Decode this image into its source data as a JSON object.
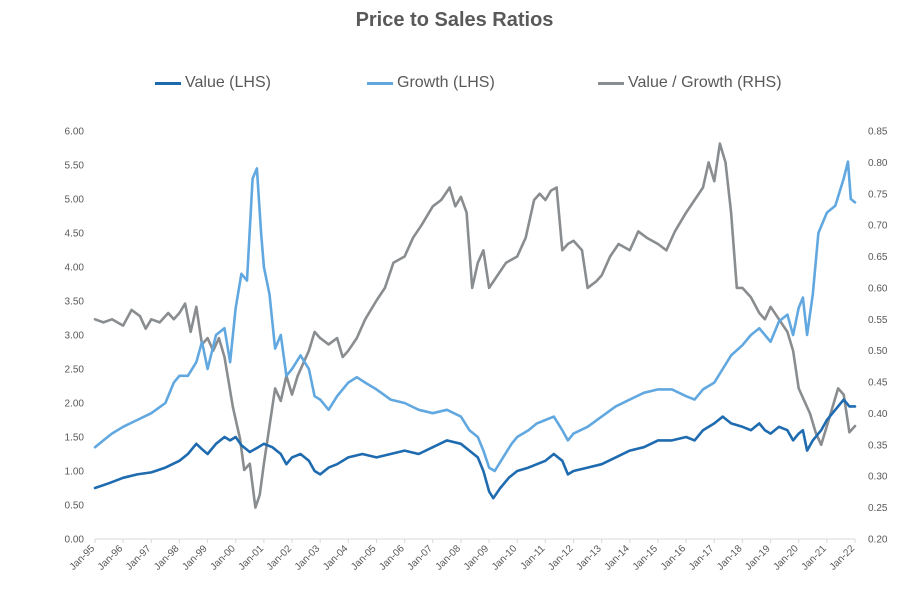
{
  "chart_data": {
    "type": "line",
    "title": "Price to Sales Ratios",
    "legend_position": "top",
    "grid": false,
    "x_ticks": [
      "Jan-95",
      "Jan-96",
      "Jan-97",
      "Jan-98",
      "Jan-99",
      "Jan-00",
      "Jan-01",
      "Jan-02",
      "Jan-03",
      "Jan-04",
      "Jan-05",
      "Jan-06",
      "Jan-07",
      "Jan-08",
      "Jan-09",
      "Jan-10",
      "Jan-11",
      "Jan-12",
      "Jan-13",
      "Jan-14",
      "Jan-15",
      "Jan-16",
      "Jan-17",
      "Jan-18",
      "Jan-19",
      "Jan-20",
      "Jan-21",
      "Jan-22"
    ],
    "y_left": {
      "range": [
        0,
        6
      ],
      "ticks": [
        "0.00",
        "0.50",
        "1.00",
        "1.50",
        "2.00",
        "2.50",
        "3.00",
        "3.50",
        "4.00",
        "4.50",
        "5.00",
        "5.50",
        "6.00"
      ]
    },
    "y_right": {
      "range": [
        0.2,
        0.85
      ],
      "ticks": [
        "0.20",
        "0.25",
        "0.30",
        "0.35",
        "0.40",
        "0.45",
        "0.50",
        "0.55",
        "0.60",
        "0.65",
        "0.70",
        "0.75",
        "0.80",
        "0.85"
      ]
    },
    "series": [
      {
        "name": "Value (LHS)",
        "axis": "left",
        "color": "#1f6bb0",
        "points": [
          [
            1995.0,
            0.75
          ],
          [
            1995.5,
            0.82
          ],
          [
            1996.0,
            0.9
          ],
          [
            1996.5,
            0.95
          ],
          [
            1997.0,
            0.98
          ],
          [
            1997.5,
            1.05
          ],
          [
            1998.0,
            1.15
          ],
          [
            1998.3,
            1.25
          ],
          [
            1998.6,
            1.4
          ],
          [
            1998.8,
            1.32
          ],
          [
            1999.0,
            1.25
          ],
          [
            1999.3,
            1.4
          ],
          [
            1999.6,
            1.5
          ],
          [
            1999.8,
            1.45
          ],
          [
            2000.0,
            1.5
          ],
          [
            2000.2,
            1.38
          ],
          [
            2000.5,
            1.28
          ],
          [
            2000.8,
            1.35
          ],
          [
            2001.0,
            1.4
          ],
          [
            2001.3,
            1.35
          ],
          [
            2001.6,
            1.25
          ],
          [
            2001.8,
            1.1
          ],
          [
            2002.0,
            1.2
          ],
          [
            2002.3,
            1.25
          ],
          [
            2002.6,
            1.15
          ],
          [
            2002.8,
            1.0
          ],
          [
            2003.0,
            0.95
          ],
          [
            2003.3,
            1.05
          ],
          [
            2003.6,
            1.1
          ],
          [
            2004.0,
            1.2
          ],
          [
            2004.5,
            1.25
          ],
          [
            2005.0,
            1.2
          ],
          [
            2005.5,
            1.25
          ],
          [
            2006.0,
            1.3
          ],
          [
            2006.5,
            1.25
          ],
          [
            2007.0,
            1.35
          ],
          [
            2007.5,
            1.45
          ],
          [
            2008.0,
            1.4
          ],
          [
            2008.3,
            1.3
          ],
          [
            2008.6,
            1.2
          ],
          [
            2008.8,
            1.0
          ],
          [
            2009.0,
            0.7
          ],
          [
            2009.15,
            0.6
          ],
          [
            2009.4,
            0.75
          ],
          [
            2009.7,
            0.9
          ],
          [
            2010.0,
            1.0
          ],
          [
            2010.4,
            1.05
          ],
          [
            2010.7,
            1.1
          ],
          [
            2011.0,
            1.15
          ],
          [
            2011.3,
            1.25
          ],
          [
            2011.6,
            1.15
          ],
          [
            2011.8,
            0.95
          ],
          [
            2012.0,
            1.0
          ],
          [
            2012.5,
            1.05
          ],
          [
            2013.0,
            1.1
          ],
          [
            2013.5,
            1.2
          ],
          [
            2014.0,
            1.3
          ],
          [
            2014.5,
            1.35
          ],
          [
            2015.0,
            1.45
          ],
          [
            2015.5,
            1.45
          ],
          [
            2016.0,
            1.5
          ],
          [
            2016.3,
            1.45
          ],
          [
            2016.6,
            1.6
          ],
          [
            2017.0,
            1.7
          ],
          [
            2017.3,
            1.8
          ],
          [
            2017.6,
            1.7
          ],
          [
            2018.0,
            1.65
          ],
          [
            2018.3,
            1.6
          ],
          [
            2018.6,
            1.7
          ],
          [
            2018.8,
            1.6
          ],
          [
            2019.0,
            1.55
          ],
          [
            2019.3,
            1.65
          ],
          [
            2019.6,
            1.6
          ],
          [
            2019.8,
            1.45
          ],
          [
            2020.0,
            1.55
          ],
          [
            2020.15,
            1.6
          ],
          [
            2020.3,
            1.3
          ],
          [
            2020.5,
            1.45
          ],
          [
            2020.8,
            1.6
          ],
          [
            2021.0,
            1.75
          ],
          [
            2021.3,
            1.9
          ],
          [
            2021.6,
            2.05
          ],
          [
            2021.8,
            1.95
          ],
          [
            2022.0,
            1.95
          ]
        ]
      },
      {
        "name": "Growth (LHS)",
        "axis": "left",
        "color": "#62a8e0",
        "points": [
          [
            1995.0,
            1.35
          ],
          [
            1995.3,
            1.45
          ],
          [
            1995.6,
            1.55
          ],
          [
            1996.0,
            1.65
          ],
          [
            1996.5,
            1.75
          ],
          [
            1997.0,
            1.85
          ],
          [
            1997.5,
            2.0
          ],
          [
            1997.8,
            2.3
          ],
          [
            1998.0,
            2.4
          ],
          [
            1998.3,
            2.4
          ],
          [
            1998.6,
            2.6
          ],
          [
            1998.8,
            2.9
          ],
          [
            1999.0,
            2.5
          ],
          [
            1999.3,
            3.0
          ],
          [
            1999.6,
            3.1
          ],
          [
            1999.8,
            2.6
          ],
          [
            2000.0,
            3.4
          ],
          [
            2000.2,
            3.9
          ],
          [
            2000.4,
            3.8
          ],
          [
            2000.6,
            5.3
          ],
          [
            2000.75,
            5.45
          ],
          [
            2000.9,
            4.5
          ],
          [
            2001.0,
            4.0
          ],
          [
            2001.2,
            3.6
          ],
          [
            2001.4,
            2.8
          ],
          [
            2001.6,
            3.0
          ],
          [
            2001.8,
            2.4
          ],
          [
            2002.0,
            2.5
          ],
          [
            2002.3,
            2.7
          ],
          [
            2002.6,
            2.5
          ],
          [
            2002.8,
            2.1
          ],
          [
            2003.0,
            2.05
          ],
          [
            2003.3,
            1.9
          ],
          [
            2003.6,
            2.1
          ],
          [
            2004.0,
            2.3
          ],
          [
            2004.3,
            2.38
          ],
          [
            2004.6,
            2.3
          ],
          [
            2005.0,
            2.2
          ],
          [
            2005.5,
            2.05
          ],
          [
            2006.0,
            2.0
          ],
          [
            2006.5,
            1.9
          ],
          [
            2007.0,
            1.85
          ],
          [
            2007.5,
            1.9
          ],
          [
            2008.0,
            1.8
          ],
          [
            2008.3,
            1.6
          ],
          [
            2008.6,
            1.5
          ],
          [
            2008.8,
            1.3
          ],
          [
            2009.0,
            1.05
          ],
          [
            2009.2,
            1.0
          ],
          [
            2009.5,
            1.2
          ],
          [
            2009.8,
            1.4
          ],
          [
            2010.0,
            1.5
          ],
          [
            2010.4,
            1.6
          ],
          [
            2010.7,
            1.7
          ],
          [
            2011.0,
            1.75
          ],
          [
            2011.3,
            1.8
          ],
          [
            2011.6,
            1.6
          ],
          [
            2011.8,
            1.45
          ],
          [
            2012.0,
            1.55
          ],
          [
            2012.5,
            1.65
          ],
          [
            2013.0,
            1.8
          ],
          [
            2013.5,
            1.95
          ],
          [
            2014.0,
            2.05
          ],
          [
            2014.5,
            2.15
          ],
          [
            2015.0,
            2.2
          ],
          [
            2015.5,
            2.2
          ],
          [
            2016.0,
            2.1
          ],
          [
            2016.3,
            2.05
          ],
          [
            2016.6,
            2.2
          ],
          [
            2017.0,
            2.3
          ],
          [
            2017.3,
            2.5
          ],
          [
            2017.6,
            2.7
          ],
          [
            2018.0,
            2.85
          ],
          [
            2018.3,
            3.0
          ],
          [
            2018.6,
            3.1
          ],
          [
            2018.8,
            3.0
          ],
          [
            2019.0,
            2.9
          ],
          [
            2019.3,
            3.2
          ],
          [
            2019.6,
            3.3
          ],
          [
            2019.8,
            3.0
          ],
          [
            2020.0,
            3.4
          ],
          [
            2020.15,
            3.55
          ],
          [
            2020.3,
            3.0
          ],
          [
            2020.5,
            3.6
          ],
          [
            2020.7,
            4.5
          ],
          [
            2021.0,
            4.8
          ],
          [
            2021.3,
            4.9
          ],
          [
            2021.6,
            5.3
          ],
          [
            2021.75,
            5.55
          ],
          [
            2021.85,
            5.0
          ],
          [
            2022.0,
            4.95
          ]
        ]
      },
      {
        "name": "Value / Growth (RHS)",
        "axis": "right",
        "color": "#8a8d8f",
        "points": [
          [
            1995.0,
            0.55
          ],
          [
            1995.3,
            0.545
          ],
          [
            1995.6,
            0.55
          ],
          [
            1996.0,
            0.54
          ],
          [
            1996.3,
            0.565
          ],
          [
            1996.6,
            0.555
          ],
          [
            1996.8,
            0.535
          ],
          [
            1997.0,
            0.55
          ],
          [
            1997.3,
            0.545
          ],
          [
            1997.6,
            0.56
          ],
          [
            1997.8,
            0.55
          ],
          [
            1998.0,
            0.56
          ],
          [
            1998.2,
            0.575
          ],
          [
            1998.4,
            0.53
          ],
          [
            1998.6,
            0.57
          ],
          [
            1998.8,
            0.51
          ],
          [
            1999.0,
            0.52
          ],
          [
            1999.2,
            0.5
          ],
          [
            1999.4,
            0.52
          ],
          [
            1999.6,
            0.49
          ],
          [
            1999.75,
            0.45
          ],
          [
            1999.9,
            0.41
          ],
          [
            2000.0,
            0.39
          ],
          [
            2000.15,
            0.36
          ],
          [
            2000.3,
            0.31
          ],
          [
            2000.5,
            0.32
          ],
          [
            2000.7,
            0.25
          ],
          [
            2000.85,
            0.27
          ],
          [
            2001.0,
            0.32
          ],
          [
            2001.2,
            0.38
          ],
          [
            2001.4,
            0.44
          ],
          [
            2001.6,
            0.42
          ],
          [
            2001.8,
            0.46
          ],
          [
            2002.0,
            0.43
          ],
          [
            2002.2,
            0.46
          ],
          [
            2002.4,
            0.48
          ],
          [
            2002.6,
            0.5
          ],
          [
            2002.8,
            0.53
          ],
          [
            2003.0,
            0.52
          ],
          [
            2003.3,
            0.51
          ],
          [
            2003.6,
            0.52
          ],
          [
            2003.8,
            0.49
          ],
          [
            2004.0,
            0.5
          ],
          [
            2004.3,
            0.52
          ],
          [
            2004.6,
            0.55
          ],
          [
            2005.0,
            0.58
          ],
          [
            2005.3,
            0.6
          ],
          [
            2005.6,
            0.64
          ],
          [
            2006.0,
            0.65
          ],
          [
            2006.3,
            0.68
          ],
          [
            2006.6,
            0.7
          ],
          [
            2007.0,
            0.73
          ],
          [
            2007.3,
            0.74
          ],
          [
            2007.6,
            0.76
          ],
          [
            2007.8,
            0.73
          ],
          [
            2008.0,
            0.745
          ],
          [
            2008.2,
            0.72
          ],
          [
            2008.4,
            0.6
          ],
          [
            2008.6,
            0.64
          ],
          [
            2008.8,
            0.66
          ],
          [
            2009.0,
            0.6
          ],
          [
            2009.3,
            0.62
          ],
          [
            2009.6,
            0.64
          ],
          [
            2010.0,
            0.65
          ],
          [
            2010.3,
            0.68
          ],
          [
            2010.6,
            0.74
          ],
          [
            2010.8,
            0.75
          ],
          [
            2011.0,
            0.74
          ],
          [
            2011.2,
            0.755
          ],
          [
            2011.4,
            0.76
          ],
          [
            2011.6,
            0.66
          ],
          [
            2011.8,
            0.67
          ],
          [
            2012.0,
            0.675
          ],
          [
            2012.3,
            0.66
          ],
          [
            2012.5,
            0.6
          ],
          [
            2012.8,
            0.61
          ],
          [
            2013.0,
            0.62
          ],
          [
            2013.3,
            0.65
          ],
          [
            2013.6,
            0.67
          ],
          [
            2014.0,
            0.66
          ],
          [
            2014.3,
            0.69
          ],
          [
            2014.6,
            0.68
          ],
          [
            2015.0,
            0.67
          ],
          [
            2015.3,
            0.66
          ],
          [
            2015.6,
            0.69
          ],
          [
            2016.0,
            0.72
          ],
          [
            2016.3,
            0.74
          ],
          [
            2016.6,
            0.76
          ],
          [
            2016.8,
            0.8
          ],
          [
            2017.0,
            0.77
          ],
          [
            2017.2,
            0.83
          ],
          [
            2017.4,
            0.8
          ],
          [
            2017.6,
            0.72
          ],
          [
            2017.8,
            0.6
          ],
          [
            2018.0,
            0.6
          ],
          [
            2018.3,
            0.585
          ],
          [
            2018.6,
            0.56
          ],
          [
            2018.8,
            0.55
          ],
          [
            2019.0,
            0.57
          ],
          [
            2019.3,
            0.55
          ],
          [
            2019.6,
            0.53
          ],
          [
            2019.8,
            0.5
          ],
          [
            2020.0,
            0.44
          ],
          [
            2020.2,
            0.42
          ],
          [
            2020.4,
            0.4
          ],
          [
            2020.6,
            0.37
          ],
          [
            2020.8,
            0.35
          ],
          [
            2021.0,
            0.38
          ],
          [
            2021.2,
            0.41
          ],
          [
            2021.4,
            0.44
          ],
          [
            2021.6,
            0.43
          ],
          [
            2021.8,
            0.37
          ],
          [
            2022.0,
            0.38
          ]
        ]
      }
    ]
  }
}
